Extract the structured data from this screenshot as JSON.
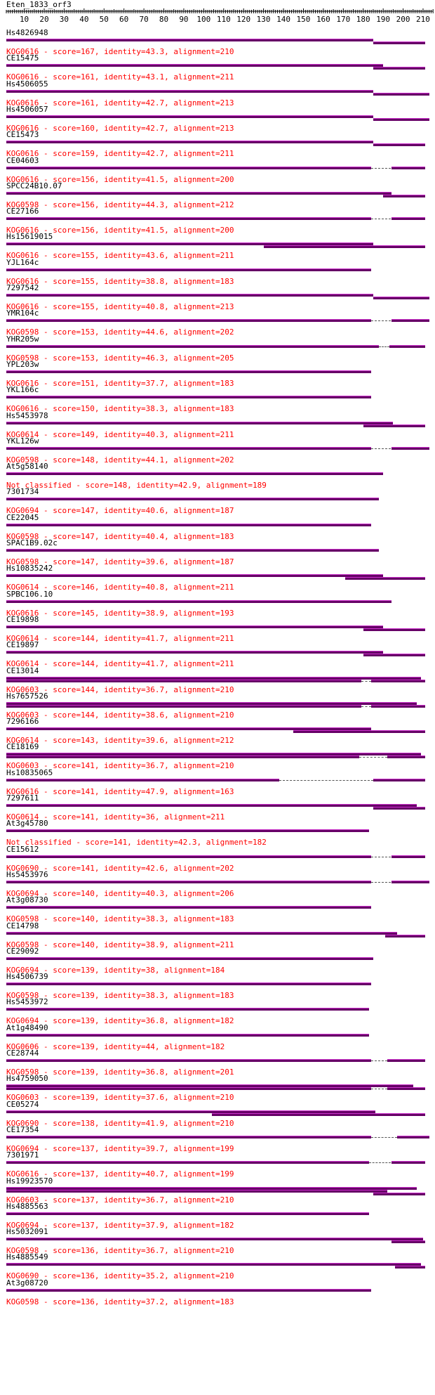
{
  "query": {
    "name": "Eten_1833_orf3",
    "length": 215
  },
  "ruler": {
    "ticks": [
      10,
      20,
      30,
      40,
      50,
      60,
      70,
      80,
      90,
      100,
      110,
      120,
      130,
      140,
      150,
      160,
      170,
      180,
      190,
      200,
      210
    ]
  },
  "colors": {
    "bar": "#660066",
    "bar_highlight": "#cc33cc",
    "description": "#ff0000"
  },
  "hits": [
    {
      "name": "Hs4826948",
      "description": "KOG0616 - score=167, identity=43.3, alignment=210",
      "tracks": [
        [
          {
            "s": 1,
            "e": 184
          }
        ],
        [
          {
            "s": 185,
            "e": 210
          }
        ]
      ]
    },
    {
      "name": "CE15475",
      "description": "KOG0616 - score=161, identity=43.1, alignment=211",
      "tracks": [
        [
          {
            "s": 1,
            "e": 189
          }
        ],
        [
          {
            "s": 185,
            "e": 210
          }
        ]
      ]
    },
    {
      "name": "Hs4506055",
      "description": "KOG0616 - score=161, identity=42.7, alignment=213",
      "tracks": [
        [
          {
            "s": 1,
            "e": 184
          }
        ],
        [
          {
            "s": 185,
            "e": 213
          }
        ]
      ]
    },
    {
      "name": "Hs4506057",
      "description": "KOG0616 - score=160, identity=42.7, alignment=213",
      "tracks": [
        [
          {
            "s": 1,
            "e": 184
          }
        ],
        [
          {
            "s": 185,
            "e": 213
          }
        ]
      ]
    },
    {
      "name": "CE15473",
      "description": "KOG0616 - score=159, identity=42.7, alignment=211",
      "tracks": [
        [
          {
            "s": 1,
            "e": 184
          }
        ],
        [
          {
            "s": 185,
            "e": 210
          }
        ]
      ]
    },
    {
      "name": "CE04603",
      "description": "KOG0616 - score=156, identity=41.5, alignment=200",
      "tracks": [
        [
          {
            "s": 1,
            "e": 183
          },
          {
            "s": 194,
            "e": 210
          }
        ]
      ]
    },
    {
      "name": "SPCC24B10.07",
      "description": "KOG0598 - score=156, identity=44.3, alignment=212",
      "tracks": [
        [
          {
            "s": 1,
            "e": 193
          }
        ],
        [
          {
            "s": 190,
            "e": 210
          }
        ]
      ]
    },
    {
      "name": "CE27166",
      "description": "KOG0616 - score=156, identity=41.5, alignment=200",
      "tracks": [
        [
          {
            "s": 1,
            "e": 183
          },
          {
            "s": 194,
            "e": 210
          }
        ]
      ]
    },
    {
      "name": "Hs15619015",
      "description": "KOG0616 - score=155, identity=43.6, alignment=211",
      "tracks": [
        [
          {
            "s": 1,
            "e": 184
          }
        ],
        [
          {
            "s": 130,
            "e": 210
          }
        ]
      ]
    },
    {
      "name": "YJL164c",
      "description": "KOG0616 - score=155, identity=38.8, alignment=183",
      "tracks": [
        [
          {
            "s": 1,
            "e": 183
          }
        ]
      ]
    },
    {
      "name": "7297542",
      "description": "KOG0616 - score=155, identity=40.8, alignment=213",
      "tracks": [
        [
          {
            "s": 1,
            "e": 184
          }
        ],
        [
          {
            "s": 185,
            "e": 213
          }
        ]
      ]
    },
    {
      "name": "YMR104c",
      "description": "KOG0598 - score=153, identity=44.6, alignment=202",
      "tracks": [
        [
          {
            "s": 1,
            "e": 183
          },
          {
            "s": 194,
            "e": 213
          }
        ]
      ]
    },
    {
      "name": "YHR205w",
      "description": "KOG0598 - score=153, identity=46.3, alignment=205",
      "tracks": [
        [
          {
            "s": 1,
            "e": 187
          },
          {
            "s": 193,
            "e": 210
          }
        ]
      ]
    },
    {
      "name": "YPL203w",
      "description": "KOG0616 - score=151, identity=37.7, alignment=183",
      "tracks": [
        [
          {
            "s": 1,
            "e": 183
          }
        ]
      ]
    },
    {
      "name": "YKL166c",
      "description": "KOG0616 - score=150, identity=38.3, alignment=183",
      "tracks": [
        [
          {
            "s": 1,
            "e": 183
          }
        ]
      ]
    },
    {
      "name": "Hs5453978",
      "description": "KOG0614 - score=149, identity=40.3, alignment=211",
      "tracks": [
        [
          {
            "s": 1,
            "e": 194
          }
        ],
        [
          {
            "s": 180,
            "e": 210
          }
        ]
      ]
    },
    {
      "name": "YKL126w",
      "description": "KOG0598 - score=148, identity=44.1, alignment=202",
      "tracks": [
        [
          {
            "s": 1,
            "e": 183
          },
          {
            "s": 194,
            "e": 213
          }
        ]
      ]
    },
    {
      "name": "At5g58140",
      "description": "Not classified - score=148, identity=42.9, alignment=189",
      "tracks": [
        [
          {
            "s": 1,
            "e": 189
          }
        ]
      ]
    },
    {
      "name": "7301734",
      "description": "KOG0694 - score=147, identity=40.6, alignment=187",
      "tracks": [
        [
          {
            "s": 1,
            "e": 187
          }
        ]
      ]
    },
    {
      "name": "CE22045",
      "description": "KOG0598 - score=147, identity=40.4, alignment=183",
      "tracks": [
        [
          {
            "s": 1,
            "e": 183
          }
        ]
      ]
    },
    {
      "name": "SPAC1B9.02c",
      "description": "KOG0598 - score=147, identity=39.6, alignment=187",
      "tracks": [
        [
          {
            "s": 1,
            "e": 187
          }
        ]
      ]
    },
    {
      "name": "Hs10835242",
      "description": "KOG0614 - score=146, identity=40.8, alignment=211",
      "tracks": [
        [
          {
            "s": 1,
            "e": 189
          }
        ],
        [
          {
            "s": 171,
            "e": 210
          }
        ]
      ]
    },
    {
      "name": "SPBC106.10",
      "description": "KOG0616 - score=145, identity=38.9, alignment=193",
      "tracks": [
        [
          {
            "s": 1,
            "e": 193
          }
        ]
      ]
    },
    {
      "name": "CE19898",
      "description": "KOG0614 - score=144, identity=41.7, alignment=211",
      "tracks": [
        [
          {
            "s": 1,
            "e": 189
          }
        ],
        [
          {
            "s": 180,
            "e": 210
          }
        ]
      ]
    },
    {
      "name": "CE19897",
      "description": "KOG0614 - score=144, identity=41.7, alignment=211",
      "tracks": [
        [
          {
            "s": 1,
            "e": 189
          }
        ],
        [
          {
            "s": 180,
            "e": 210
          }
        ]
      ]
    },
    {
      "name": "CE13014",
      "description": "KOG0603 - score=144, identity=36.7, alignment=210",
      "tracks": [
        [
          {
            "s": 1,
            "e": 208
          }
        ],
        [
          {
            "s": 1,
            "e": 178
          },
          {
            "s": 184,
            "e": 210
          }
        ]
      ]
    },
    {
      "name": "Hs7657526",
      "description": "KOG0603 - score=144, identity=38.6, alignment=210",
      "tracks": [
        [
          {
            "s": 1,
            "e": 206
          }
        ],
        [
          {
            "s": 1,
            "e": 178
          },
          {
            "s": 184,
            "e": 210
          }
        ]
      ]
    },
    {
      "name": "7296166",
      "description": "KOG0614 - score=143, identity=39.6, alignment=212",
      "tracks": [
        [
          {
            "s": 1,
            "e": 183
          }
        ],
        [
          {
            "s": 145,
            "e": 210
          }
        ]
      ]
    },
    {
      "name": "CE18169",
      "description": "KOG0603 - score=141, identity=36.7, alignment=210",
      "tracks": [
        [
          {
            "s": 1,
            "e": 208
          }
        ],
        [
          {
            "s": 1,
            "e": 177
          },
          {
            "s": 192,
            "e": 210
          }
        ]
      ]
    },
    {
      "name": "Hs10835065",
      "description": "KOG0616 - score=141, identity=47.9, alignment=163",
      "tracks": [
        [
          {
            "s": 1,
            "e": 137
          },
          {
            "s": 185,
            "e": 210
          }
        ]
      ]
    },
    {
      "name": "7297611",
      "description": "KOG0614 - score=141, identity=36, alignment=211",
      "tracks": [
        [
          {
            "s": 1,
            "e": 206
          }
        ],
        [
          {
            "s": 185,
            "e": 210
          }
        ]
      ]
    },
    {
      "name": "At3g45780",
      "description": "Not classified - score=141, identity=42.3, alignment=182",
      "tracks": [
        [
          {
            "s": 1,
            "e": 182
          }
        ]
      ]
    },
    {
      "name": "CE15612",
      "description": "KOG0690 - score=141, identity=42.6, alignment=202",
      "tracks": [
        [
          {
            "s": 1,
            "e": 183
          },
          {
            "s": 194,
            "e": 210
          }
        ]
      ]
    },
    {
      "name": "Hs5453976",
      "description": "KOG0694 - score=140, identity=40.3, alignment=206",
      "tracks": [
        [
          {
            "s": 1,
            "e": 183
          },
          {
            "s": 194,
            "e": 213
          }
        ]
      ]
    },
    {
      "name": "At3g08730",
      "description": "KOG0598 - score=140, identity=38.3, alignment=183",
      "tracks": [
        [
          {
            "s": 1,
            "e": 183
          }
        ]
      ]
    },
    {
      "name": "CE14798",
      "description": "KOG0598 - score=140, identity=38.9, alignment=211",
      "tracks": [
        [
          {
            "s": 1,
            "e": 196
          }
        ],
        [
          {
            "s": 191,
            "e": 210
          }
        ]
      ]
    },
    {
      "name": "CE29092",
      "description": "KOG0694 - score=139, identity=38, alignment=184",
      "tracks": [
        [
          {
            "s": 1,
            "e": 184
          }
        ]
      ]
    },
    {
      "name": "Hs4506739",
      "description": "KOG0598 - score=139, identity=38.3, alignment=183",
      "tracks": [
        [
          {
            "s": 1,
            "e": 183
          }
        ]
      ]
    },
    {
      "name": "Hs5453972",
      "description": "KOG0694 - score=139, identity=36.8, alignment=182",
      "tracks": [
        [
          {
            "s": 1,
            "e": 182
          }
        ]
      ]
    },
    {
      "name": "At1g48490",
      "description": "KOG0606 - score=139, identity=44, alignment=182",
      "tracks": [
        [
          {
            "s": 1,
            "e": 182
          }
        ]
      ]
    },
    {
      "name": "CE28744",
      "description": "KOG0598 - score=139, identity=36.8, alignment=201",
      "tracks": [
        [
          {
            "s": 1,
            "e": 183
          },
          {
            "s": 192,
            "e": 210
          }
        ]
      ]
    },
    {
      "name": "Hs4759050",
      "description": "KOG0603 - score=139, identity=37.6, alignment=210",
      "tracks": [
        [
          {
            "s": 1,
            "e": 204
          }
        ],
        [
          {
            "s": 1,
            "e": 183
          },
          {
            "s": 192,
            "e": 210
          }
        ]
      ]
    },
    {
      "name": "CE05274",
      "description": "KOG0690 - score=138, identity=41.9, alignment=210",
      "tracks": [
        [
          {
            "s": 1,
            "e": 185
          }
        ],
        [
          {
            "s": 104,
            "e": 210
          }
        ]
      ]
    },
    {
      "name": "CE17354",
      "description": "KOG0694 - score=137, identity=39.7, alignment=199",
      "tracks": [
        [
          {
            "s": 1,
            "e": 183
          },
          {
            "s": 197,
            "e": 213
          }
        ]
      ]
    },
    {
      "name": "7301971",
      "description": "KOG0616 - score=137, identity=40.7, alignment=199",
      "tracks": [
        [
          {
            "s": 1,
            "e": 182
          },
          {
            "s": 194,
            "e": 210
          }
        ]
      ]
    },
    {
      "name": "Hs19923570",
      "description": "KOG0603 - score=137, identity=36.7, alignment=210",
      "tracks": [
        [
          {
            "s": 1,
            "e": 206
          }
        ],
        [
          {
            "s": 1,
            "e": 191
          }
        ],
        [
          {
            "s": 185,
            "e": 210
          }
        ]
      ]
    },
    {
      "name": "Hs4885563",
      "description": "KOG0694 - score=137, identity=37.9, alignment=182",
      "tracks": [
        [
          {
            "s": 1,
            "e": 182
          }
        ]
      ]
    },
    {
      "name": "Hs5032091",
      "description": "KOG0598 - score=136, identity=36.7, alignment=210",
      "tracks": [
        [
          {
            "s": 1,
            "e": 209
          }
        ],
        [
          {
            "s": 194,
            "e": 210
          }
        ]
      ]
    },
    {
      "name": "Hs4885549",
      "description": "KOG0690 - score=136, identity=35.2, alignment=210",
      "tracks": [
        [
          {
            "s": 1,
            "e": 208
          }
        ],
        [
          {
            "s": 196,
            "e": 210
          }
        ]
      ]
    },
    {
      "name": "At3g08720",
      "description": "KOG0598 - score=136, identity=37.2, alignment=183",
      "tracks": [
        [
          {
            "s": 1,
            "e": 183
          }
        ]
      ]
    }
  ]
}
